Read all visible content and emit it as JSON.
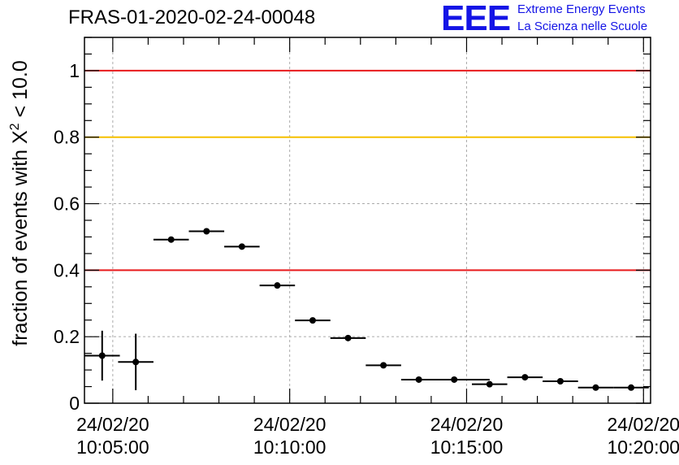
{
  "header": {
    "run_title": "FRAS-01-2020-02-24-00048",
    "logo_letters": "EEE",
    "logo_line1": "Extreme Energy Events",
    "logo_line2": "La Scienza nelle Scuole"
  },
  "colors": {
    "red_line": "#e8191b",
    "yellow_line": "#f5c000",
    "points": "#000000",
    "logo": "#1414e6",
    "grid": "#aaaaaa"
  },
  "chart_data": {
    "type": "scatter",
    "title": "FRAS-01-2020-02-24-00048",
    "ylabel_prefix": "fraction of events with X",
    "ylabel_sup": "2",
    "ylabel_suffix": " < 10.0",
    "xlabel": "",
    "ylim": [
      0,
      1.1
    ],
    "xlim_minutes": [
      -0.8,
      15.2
    ],
    "grid": true,
    "y_ticks": [
      {
        "v": 0,
        "label": "0"
      },
      {
        "v": 0.2,
        "label": "0.2"
      },
      {
        "v": 0.4,
        "label": "0.4"
      },
      {
        "v": 0.6,
        "label": "0.6"
      },
      {
        "v": 0.8,
        "label": "0.8"
      },
      {
        "v": 1,
        "label": "1"
      }
    ],
    "x_ticks": [
      {
        "v": 0,
        "date": "24/02/20",
        "time": "10:05:00"
      },
      {
        "v": 5,
        "date": "24/02/20",
        "time": "10:10:00"
      },
      {
        "v": 10,
        "date": "24/02/20",
        "time": "10:15:00"
      },
      {
        "v": 15,
        "date": "24/02/20",
        "time": "10:20:00"
      }
    ],
    "reference_lines": [
      {
        "y": 1.0,
        "color": "#e8191b"
      },
      {
        "y": 0.8,
        "color": "#f5c000"
      },
      {
        "y": 0.4,
        "color": "#e8191b"
      }
    ],
    "points": [
      {
        "x": -0.3,
        "xerr": 0.5,
        "y": 0.143,
        "yerr": 0.075
      },
      {
        "x": 0.65,
        "xerr": 0.5,
        "y": 0.124,
        "yerr": 0.085
      },
      {
        "x": 1.65,
        "xerr": 0.5,
        "y": 0.492,
        "yerr": 0.006
      },
      {
        "x": 2.65,
        "xerr": 0.5,
        "y": 0.517,
        "yerr": 0.006
      },
      {
        "x": 3.65,
        "xerr": 0.5,
        "y": 0.471,
        "yerr": 0.006
      },
      {
        "x": 4.65,
        "xerr": 0.5,
        "y": 0.354,
        "yerr": 0.006
      },
      {
        "x": 5.65,
        "xerr": 0.5,
        "y": 0.249,
        "yerr": 0.006
      },
      {
        "x": 6.65,
        "xerr": 0.5,
        "y": 0.196,
        "yerr": 0.005
      },
      {
        "x": 7.65,
        "xerr": 0.5,
        "y": 0.114,
        "yerr": 0.004
      },
      {
        "x": 8.65,
        "xerr": 0.5,
        "y": 0.071,
        "yerr": 0.004
      },
      {
        "x": 9.65,
        "xerr": 1.0,
        "y": 0.071,
        "yerr": 0.004
      },
      {
        "x": 10.65,
        "xerr": 0.5,
        "y": 0.057,
        "yerr": 0.004
      },
      {
        "x": 11.65,
        "xerr": 0.5,
        "y": 0.078,
        "yerr": 0.004
      },
      {
        "x": 12.65,
        "xerr": 0.5,
        "y": 0.066,
        "yerr": 0.004
      },
      {
        "x": 13.65,
        "xerr": 0.5,
        "y": 0.047,
        "yerr": 0.004
      },
      {
        "x": 14.65,
        "xerr": 0.5,
        "y": 0.047,
        "yerr": 0.004
      }
    ]
  }
}
